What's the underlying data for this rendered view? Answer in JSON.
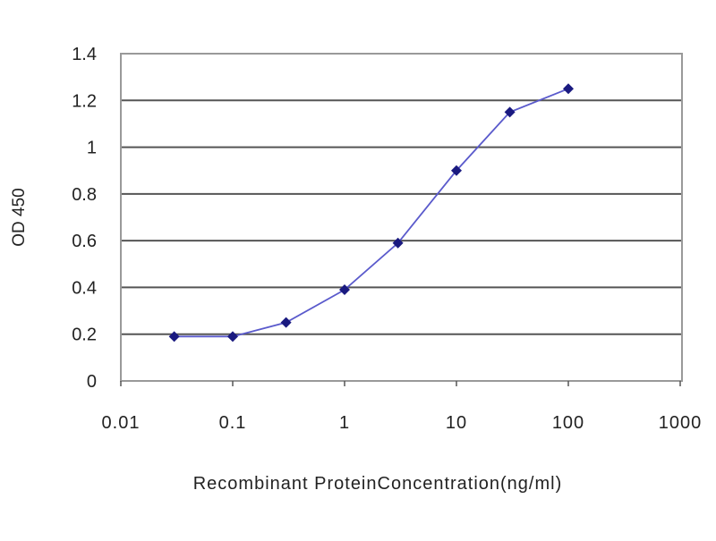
{
  "chart_data": {
    "type": "line",
    "title": "",
    "xlabel": "Recombinant ProteinConcentration(ng/ml)",
    "ylabel": "OD 450",
    "x_scale": "log",
    "xlim": [
      0.01,
      1000
    ],
    "ylim": [
      0,
      1.4
    ],
    "x_ticks": [
      "0.01",
      "0.1",
      "1",
      "10",
      "100",
      "1000"
    ],
    "y_ticks": [
      "0",
      "0.2",
      "0.4",
      "0.6",
      "0.8",
      "1",
      "1.2",
      "1.4"
    ],
    "grid": "horizontal",
    "legend": "none",
    "series": [
      {
        "color": "#1a1a80",
        "marker": "diamond",
        "x": [
          0.03,
          0.1,
          0.3,
          1,
          3,
          10,
          30,
          100
        ],
        "y": [
          0.19,
          0.19,
          0.25,
          0.39,
          0.59,
          0.9,
          1.15,
          1.25
        ]
      }
    ]
  }
}
